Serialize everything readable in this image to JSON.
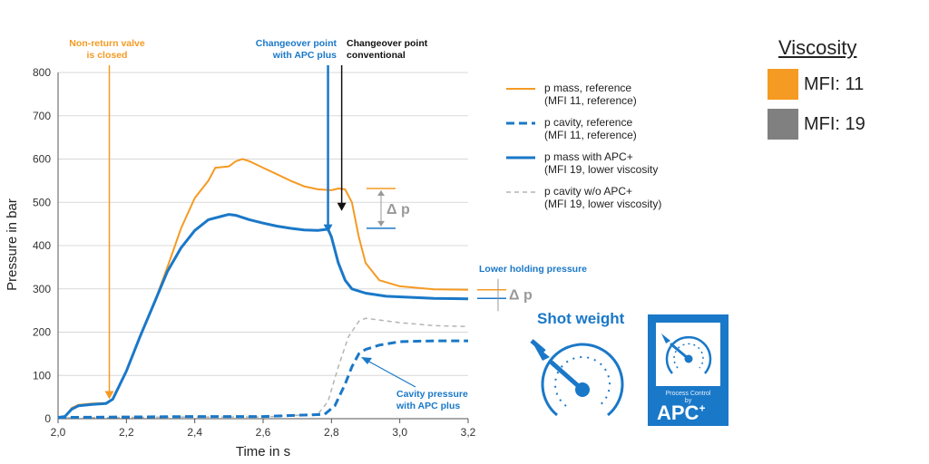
{
  "chart_data": {
    "type": "line",
    "xlabel": "Time in s",
    "ylabel": "Pressure in bar",
    "xlim": [
      2.0,
      3.2
    ],
    "ylim": [
      0,
      800
    ],
    "x_ticks": [
      "2,0",
      "2,2",
      "2,4",
      "2,6",
      "2,8",
      "3,0",
      "3,2"
    ],
    "y_ticks": [
      "0",
      "100",
      "200",
      "300",
      "400",
      "500",
      "600",
      "700",
      "800"
    ],
    "grid": "horizontal",
    "legend_position": "right",
    "series": [
      {
        "name": "p mass, reference",
        "name_line2": "(MFI 11, reference)",
        "color": "#f59a23",
        "style": "solid",
        "points": [
          [
            2.0,
            3
          ],
          [
            2.02,
            5
          ],
          [
            2.04,
            25
          ],
          [
            2.06,
            32
          ],
          [
            2.1,
            35
          ],
          [
            2.14,
            36
          ],
          [
            2.16,
            45
          ],
          [
            2.2,
            110
          ],
          [
            2.24,
            190
          ],
          [
            2.28,
            265
          ],
          [
            2.32,
            350
          ],
          [
            2.36,
            440
          ],
          [
            2.4,
            510
          ],
          [
            2.44,
            550
          ],
          [
            2.46,
            580
          ],
          [
            2.5,
            583
          ],
          [
            2.52,
            595
          ],
          [
            2.54,
            600
          ],
          [
            2.56,
            595
          ],
          [
            2.6,
            580
          ],
          [
            2.64,
            565
          ],
          [
            2.68,
            550
          ],
          [
            2.72,
            537
          ],
          [
            2.76,
            530
          ],
          [
            2.8,
            528
          ],
          [
            2.82,
            532
          ],
          [
            2.84,
            530
          ],
          [
            2.86,
            500
          ],
          [
            2.88,
            420
          ],
          [
            2.9,
            360
          ],
          [
            2.94,
            320
          ],
          [
            3.0,
            306
          ],
          [
            3.1,
            299
          ],
          [
            3.2,
            298
          ]
        ]
      },
      {
        "name": "p cavity, reference",
        "name_line2": "(MFI 11, reference)",
        "color": "#1a78c8",
        "style": "dashed",
        "points": [
          [
            2.0,
            3
          ],
          [
            2.2,
            4
          ],
          [
            2.4,
            5
          ],
          [
            2.6,
            5
          ],
          [
            2.78,
            10
          ],
          [
            2.81,
            30
          ],
          [
            2.84,
            80
          ],
          [
            2.86,
            120
          ],
          [
            2.88,
            150
          ],
          [
            2.9,
            160
          ],
          [
            2.94,
            170
          ],
          [
            3.0,
            178
          ],
          [
            3.1,
            180
          ],
          [
            3.2,
            180
          ]
        ]
      },
      {
        "name": "p mass with APC+",
        "name_line2": "(MFI 19, lower viscosity",
        "color": "#1a78c8",
        "style": "solid",
        "points": [
          [
            2.0,
            3
          ],
          [
            2.02,
            5
          ],
          [
            2.04,
            22
          ],
          [
            2.06,
            30
          ],
          [
            2.1,
            33
          ],
          [
            2.14,
            35
          ],
          [
            2.16,
            45
          ],
          [
            2.2,
            110
          ],
          [
            2.24,
            190
          ],
          [
            2.28,
            265
          ],
          [
            2.32,
            340
          ],
          [
            2.36,
            395
          ],
          [
            2.4,
            435
          ],
          [
            2.44,
            460
          ],
          [
            2.48,
            468
          ],
          [
            2.5,
            472
          ],
          [
            2.52,
            470
          ],
          [
            2.56,
            460
          ],
          [
            2.6,
            452
          ],
          [
            2.64,
            445
          ],
          [
            2.68,
            440
          ],
          [
            2.72,
            436
          ],
          [
            2.76,
            435
          ],
          [
            2.79,
            438
          ],
          [
            2.8,
            420
          ],
          [
            2.82,
            360
          ],
          [
            2.84,
            320
          ],
          [
            2.86,
            300
          ],
          [
            2.9,
            290
          ],
          [
            2.96,
            283
          ],
          [
            3.1,
            278
          ],
          [
            3.2,
            277
          ]
        ]
      },
      {
        "name": "p cavity w/o APC+",
        "name_line2": "(MFI 19, lower viscosity)",
        "color": "#b4b4b4",
        "style": "dashed",
        "points": [
          [
            2.0,
            2
          ],
          [
            2.2,
            3
          ],
          [
            2.4,
            4
          ],
          [
            2.6,
            4
          ],
          [
            2.76,
            10
          ],
          [
            2.79,
            40
          ],
          [
            2.82,
            120
          ],
          [
            2.85,
            190
          ],
          [
            2.88,
            225
          ],
          [
            2.9,
            232
          ],
          [
            2.94,
            228
          ],
          [
            3.0,
            222
          ],
          [
            3.1,
            215
          ],
          [
            3.2,
            213
          ]
        ]
      }
    ],
    "annotations": [
      {
        "text_line1": "Non-return valve",
        "text_line2": "is closed",
        "color": "#f59a23",
        "x": 2.15
      },
      {
        "text_line1": "Changeover point",
        "text_line2": "with APC plus",
        "color": "#1a78c8",
        "x": 2.79
      },
      {
        "text_line1": "Changeover point",
        "text_line2": "conventional",
        "color": "#111111",
        "x": 2.83
      },
      {
        "text": "Δ p",
        "color": "#999999",
        "y_top": 532,
        "y_bottom": 440
      },
      {
        "text": "Lower holding pressure",
        "color": "#1a78c8"
      },
      {
        "text": "Δ p",
        "color": "#999999",
        "y_top": 298,
        "y_bottom": 278
      },
      {
        "text_line1": "Cavity pressure",
        "text_line2": "with APC plus",
        "color": "#1a78c8"
      }
    ]
  },
  "viscosity": {
    "title": "Viscosity",
    "items": [
      {
        "label": "MFI: 11",
        "color": "#f59a23"
      },
      {
        "label": "MFI: 19",
        "color": "#808080"
      }
    ]
  },
  "shot_weight": {
    "title": "Shot weight"
  },
  "apc_logo": {
    "line1": "Process Control",
    "line2": "by",
    "brand": "APC",
    "sup": "+"
  }
}
